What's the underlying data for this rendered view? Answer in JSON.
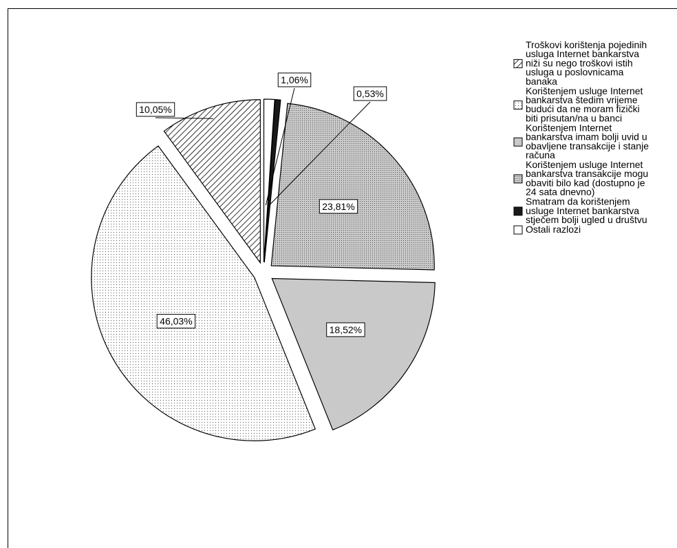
{
  "chart_data": {
    "type": "pie",
    "title": "",
    "slices": [
      {
        "value": 10.05,
        "label": "10,05%",
        "category": "Troškovi korištenja pojedinih usluga Internet bankarstva niži su nego troškovi istih usluga u poslovnicama banaka",
        "pattern": "diagonal-hatch"
      },
      {
        "value": 46.03,
        "label": "46,03%",
        "category": "Korištenjem usluge Internet bankarstva štedim vrijeme budući da ne moram fizički biti prisutan/na u banci",
        "pattern": "sparse-dots"
      },
      {
        "value": 18.52,
        "label": "18,52%",
        "category": "Korištenjem Internet bankarstva imam bolji uvid u obavljene transakcije i stanje računa",
        "pattern": "solid-gray"
      },
      {
        "value": 23.81,
        "label": "23,81%",
        "category": "Korištenjem usluge Internet bankarstva transakcije mogu obaviti bilo kad (dostupno je 24 sata dnevno)",
        "pattern": "dense-dots"
      },
      {
        "value": 0.53,
        "label": "0,53%",
        "category": "Smatram da korištenjem usluge Internet bankarstva stječem bolji ugled u društvu",
        "pattern": "solid-black"
      },
      {
        "value": 1.06,
        "label": "1,06%",
        "category": "Ostali razlozi",
        "pattern": "white"
      }
    ],
    "legend": {
      "placement": "right",
      "entries": [
        {
          "lines": [
            "Troškovi korištenja pojedinih",
            "usluga Internet bankarstva",
            "niži su nego troškovi istih",
            "usluga u poslovnicama",
            "banaka"
          ],
          "pattern": "diagonal-hatch"
        },
        {
          "lines": [
            "Korištenjem usluge Internet",
            "bankarstva štedim vrijeme",
            "budući da ne moram fizički",
            "biti prisutan/na u banci"
          ],
          "pattern": "sparse-dots"
        },
        {
          "lines": [
            "Korištenjem Internet",
            "bankarstva imam bolji uvid u",
            "obavljene transakcije i stanje",
            "računa"
          ],
          "pattern": "solid-gray"
        },
        {
          "lines": [
            "Korištenjem usluge Internet",
            "bankarstva transakcije mogu",
            "obaviti bilo kad (dostupno je",
            "24 sata dnevno)"
          ],
          "pattern": "dense-dots"
        },
        {
          "lines": [
            "Smatram da korištenjem",
            "usluge Internet bankarstva",
            "stječem bolji ugled u društvu"
          ],
          "pattern": "solid-black"
        },
        {
          "lines": [
            "Ostali razlozi"
          ],
          "pattern": "white"
        }
      ]
    },
    "colors": {
      "gray": "#c9c9c9",
      "black": "#1a1a1a",
      "outline": "#000000"
    }
  }
}
